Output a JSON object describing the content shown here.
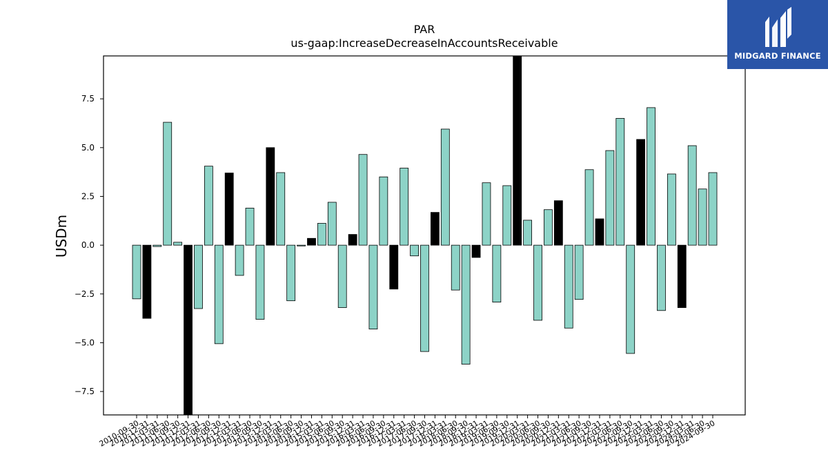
{
  "logo": {
    "text": "MIDGARD FINANCE",
    "background": "#2a55a8"
  },
  "chart_data": {
    "type": "bar",
    "title": "PAR",
    "subtitle": "us-gaap:IncreaseDecreaseInAccountsReceivable",
    "xlabel": "",
    "ylabel": "USDm",
    "ylim": [
      -8.7,
      9.7
    ],
    "yticks": [
      -7.5,
      -5.0,
      -2.5,
      0.0,
      2.5,
      5.0,
      7.5
    ],
    "ytick_labels": [
      "−7.5",
      "−5.0",
      "−2.5",
      "0.0",
      "2.5",
      "5.0",
      "7.5"
    ],
    "grid": false,
    "legend": "none",
    "colors": {
      "default": "#8dd3c7",
      "highlight": "#000000",
      "edge": "#000000"
    },
    "categories": [
      "2010-09-30",
      "2010-12-31",
      "2011-03-31",
      "2011-06-30",
      "2011-09-30",
      "2011-12-31",
      "2012-03-31",
      "2012-06-30",
      "2012-09-30",
      "2012-12-31",
      "2013-03-31",
      "2013-06-30",
      "2013-09-30",
      "2013-12-31",
      "2014-03-31",
      "2014-06-30",
      "2014-09-30",
      "2014-12-31",
      "2015-03-31",
      "2015-06-30",
      "2015-09-30",
      "2015-12-31",
      "2016-03-31",
      "2016-06-30",
      "2016-09-30",
      "2016-12-31",
      "2017-03-31",
      "2017-06-30",
      "2017-09-30",
      "2017-12-31",
      "2018-03-31",
      "2018-06-30",
      "2018-09-30",
      "2018-12-31",
      "2019-03-31",
      "2019-06-30",
      "2019-09-30",
      "2019-12-31",
      "2020-03-31",
      "2020-06-30",
      "2020-09-30",
      "2020-12-31",
      "2021-03-31",
      "2021-06-30",
      "2021-09-30",
      "2021-12-31",
      "2022-03-31",
      "2022-06-30",
      "2022-09-30",
      "2022-12-31",
      "2023-03-31",
      "2023-06-30",
      "2023-09-30",
      "2023-12-31",
      "2024-03-31",
      "2024-06-30",
      "2024-09-30"
    ],
    "x_ticklabels": [
      "2010-09-30",
      "2010-12-31",
      "2011-03-31",
      "2011-06-30",
      "2011-09-30",
      "2011-12-31",
      "2012-03-31",
      "2012-06-30",
      "2012-09-30",
      "2012-12-31",
      "2013-03-31",
      "2013-06-30",
      "2013-09-30",
      "2013-12-31",
      "2014-03-31",
      "2014-06-30",
      "2014-09-30",
      "2014-12-31",
      "2015-03-31",
      "2015-06-30",
      "2015-09-30",
      "2015-12-31",
      "2016-03-31",
      "2016-06-30",
      "2016-09-30",
      "2016-12-31",
      "2017-03-31",
      "2017-06-30",
      "2017-09-30",
      "2017-12-31",
      "2018-03-31",
      "2018-06-30",
      "2018-09-30",
      "2018-12-31",
      "2019-03-31",
      "2019-06-30",
      "2019-09-30",
      "2019-12-31",
      "2020-03-31",
      "2020-06-30",
      "2020-09-30",
      "2020-12-31",
      "2021-03-31",
      "2021-06-30",
      "2021-09-30",
      "2021-12-31",
      "2022-03-31",
      "2022-06-30",
      "2022-09-30",
      "2022-12-31",
      "2023-03-31",
      "2023-06-30",
      "2023-09-30",
      "2023-12-31",
      "2024-03-31",
      "2024-06-30",
      "2024-09-30"
    ],
    "values": [
      -2.75,
      -3.75,
      -0.07,
      6.3,
      0.15,
      -8.7,
      -3.25,
      4.05,
      -5.05,
      3.7,
      -1.55,
      1.9,
      -3.8,
      5.0,
      3.72,
      -2.85,
      -0.04,
      0.35,
      1.12,
      2.2,
      -3.2,
      0.55,
      4.65,
      -4.3,
      3.5,
      -2.25,
      3.95,
      -0.55,
      -5.45,
      1.68,
      5.95,
      -2.3,
      -6.1,
      -0.63,
      3.2,
      -2.92,
      3.05,
      9.7,
      1.28,
      -3.85,
      1.82,
      2.28,
      -4.25,
      -2.78,
      3.87,
      1.35,
      4.85,
      6.5,
      -5.55,
      5.42,
      7.05,
      -3.35,
      3.65,
      -3.2,
      5.1,
      2.88,
      3.72
    ],
    "highlight": [
      false,
      true,
      false,
      false,
      false,
      true,
      false,
      false,
      false,
      true,
      false,
      false,
      false,
      true,
      false,
      false,
      false,
      true,
      false,
      false,
      false,
      true,
      false,
      false,
      false,
      true,
      false,
      false,
      false,
      true,
      false,
      false,
      false,
      true,
      false,
      false,
      false,
      true,
      false,
      false,
      false,
      true,
      false,
      false,
      false,
      true,
      false,
      false,
      false,
      true,
      false,
      false,
      false,
      true,
      false,
      false,
      false
    ]
  }
}
